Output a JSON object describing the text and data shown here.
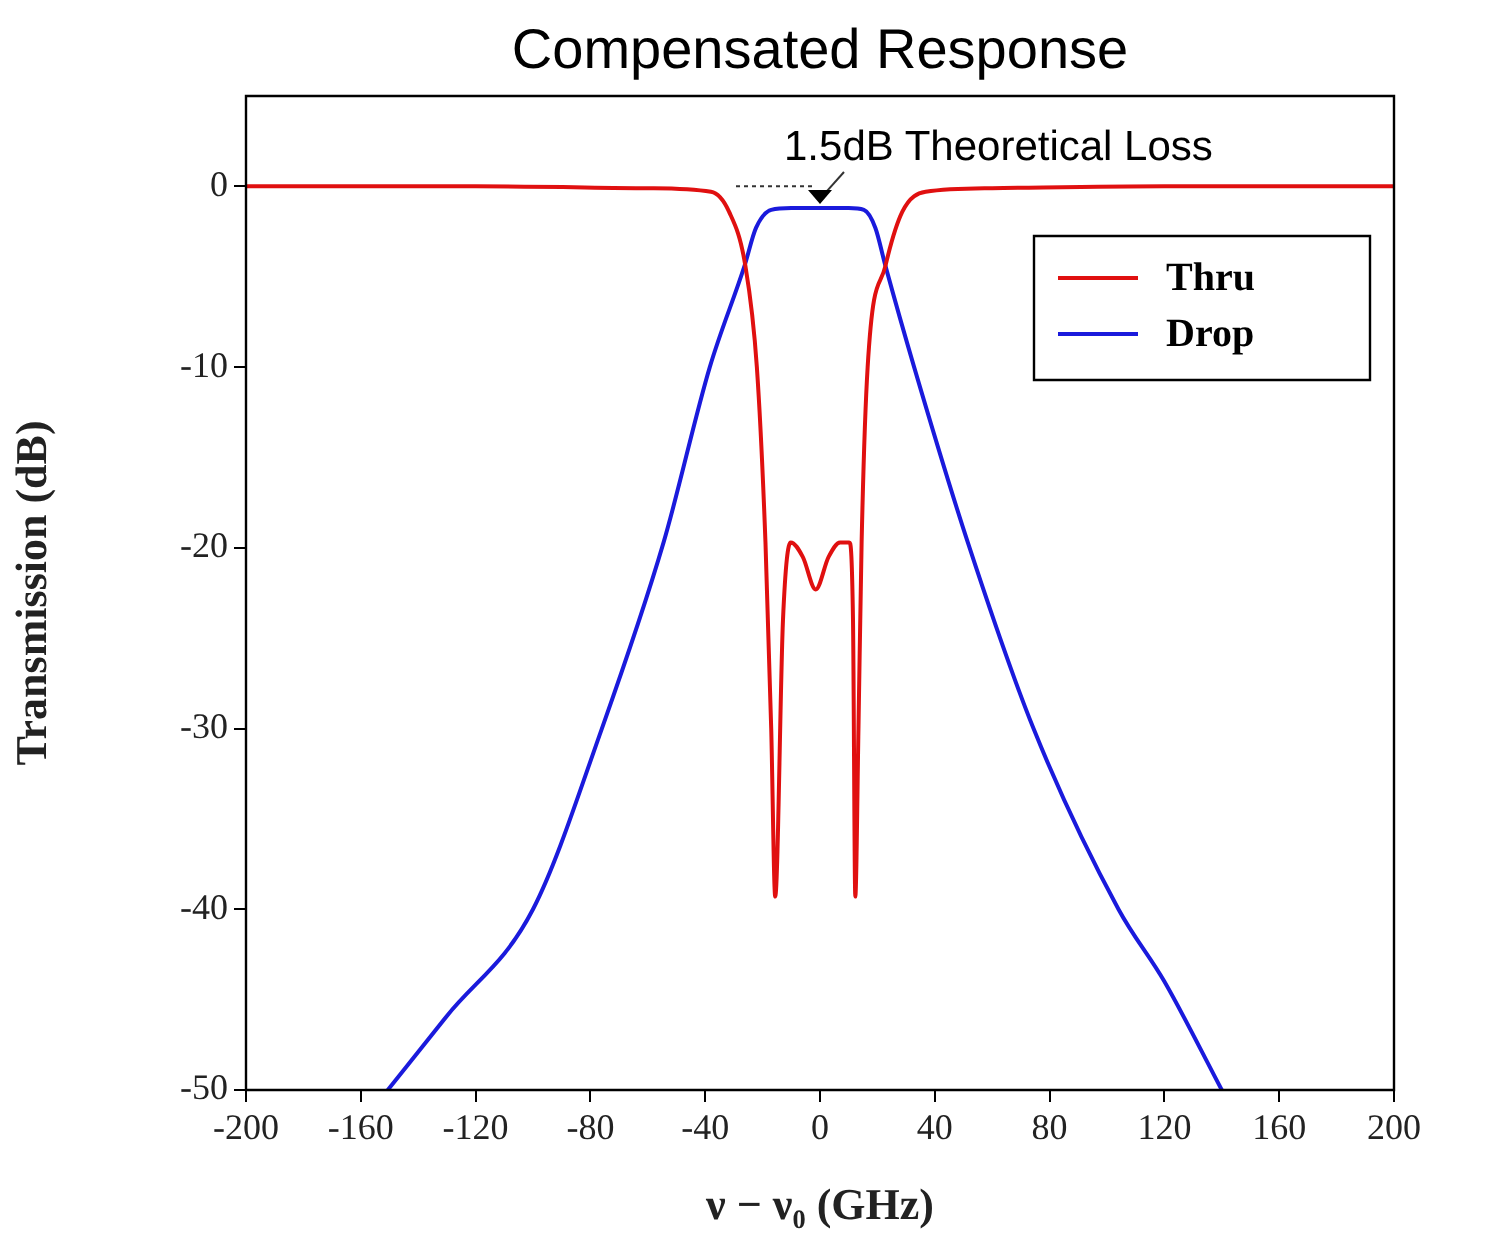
{
  "chart_data": {
    "type": "line",
    "title": "Compensated Response",
    "xlabel": "ν − ν₀ (GHz)",
    "ylabel": "Transmission (dB)",
    "xlim": [
      -200,
      200
    ],
    "xticks": [
      -200,
      -160,
      -120,
      -80,
      -40,
      0,
      40,
      80,
      120,
      160,
      200
    ],
    "ylim": [
      -50,
      5
    ],
    "yticks": [
      -50,
      -40,
      -30,
      -20,
      -10,
      0
    ],
    "legend": "top right",
    "marker": "none",
    "line_style": "solid",
    "annotations": [
      {
        "text": "1.5dB Theoretical Loss",
        "x": 0,
        "y": -1.2
      }
    ],
    "series": [
      {
        "name": "Thru",
        "color": "#e01010",
        "x": [
          -200,
          -120,
          -60,
          -38,
          -31.7,
          -26,
          -22,
          -19,
          -17,
          -15.6,
          -12.9,
          -10.2,
          -6,
          -1.5,
          3,
          7,
          10.2,
          11.5,
          12.3,
          13.4,
          14.5,
          16.6,
          22.8,
          28.7,
          36.8,
          60,
          120,
          200
        ],
        "values": [
          0,
          0,
          -0.1,
          -0.3,
          -1.4,
          -4.4,
          -10,
          -19.7,
          -30,
          -39.3,
          -24,
          -19.7,
          -20.5,
          -22.3,
          -20.5,
          -19.7,
          -19.7,
          -24,
          -39.3,
          -30,
          -19.7,
          -10,
          -4.4,
          -1.4,
          -0.3,
          -0.1,
          0,
          0
        ]
      },
      {
        "name": "Drop",
        "color": "#1a1adc",
        "x": [
          -150.6,
          -130,
          -100,
          -76,
          -54.5,
          -38.4,
          -26.3,
          -22.3,
          -17,
          -10,
          0,
          10,
          15.3,
          19.3,
          22.8,
          32.8,
          51.5,
          74.4,
          104,
          120,
          140
        ],
        "values": [
          -50,
          -45.9,
          -40,
          -30,
          -19.7,
          -10,
          -4.4,
          -2.3,
          -1.3,
          -1.2,
          -1.2,
          -1.2,
          -1.3,
          -2.3,
          -4.4,
          -10,
          -19.7,
          -30,
          -40,
          -44,
          -50
        ]
      }
    ]
  }
}
